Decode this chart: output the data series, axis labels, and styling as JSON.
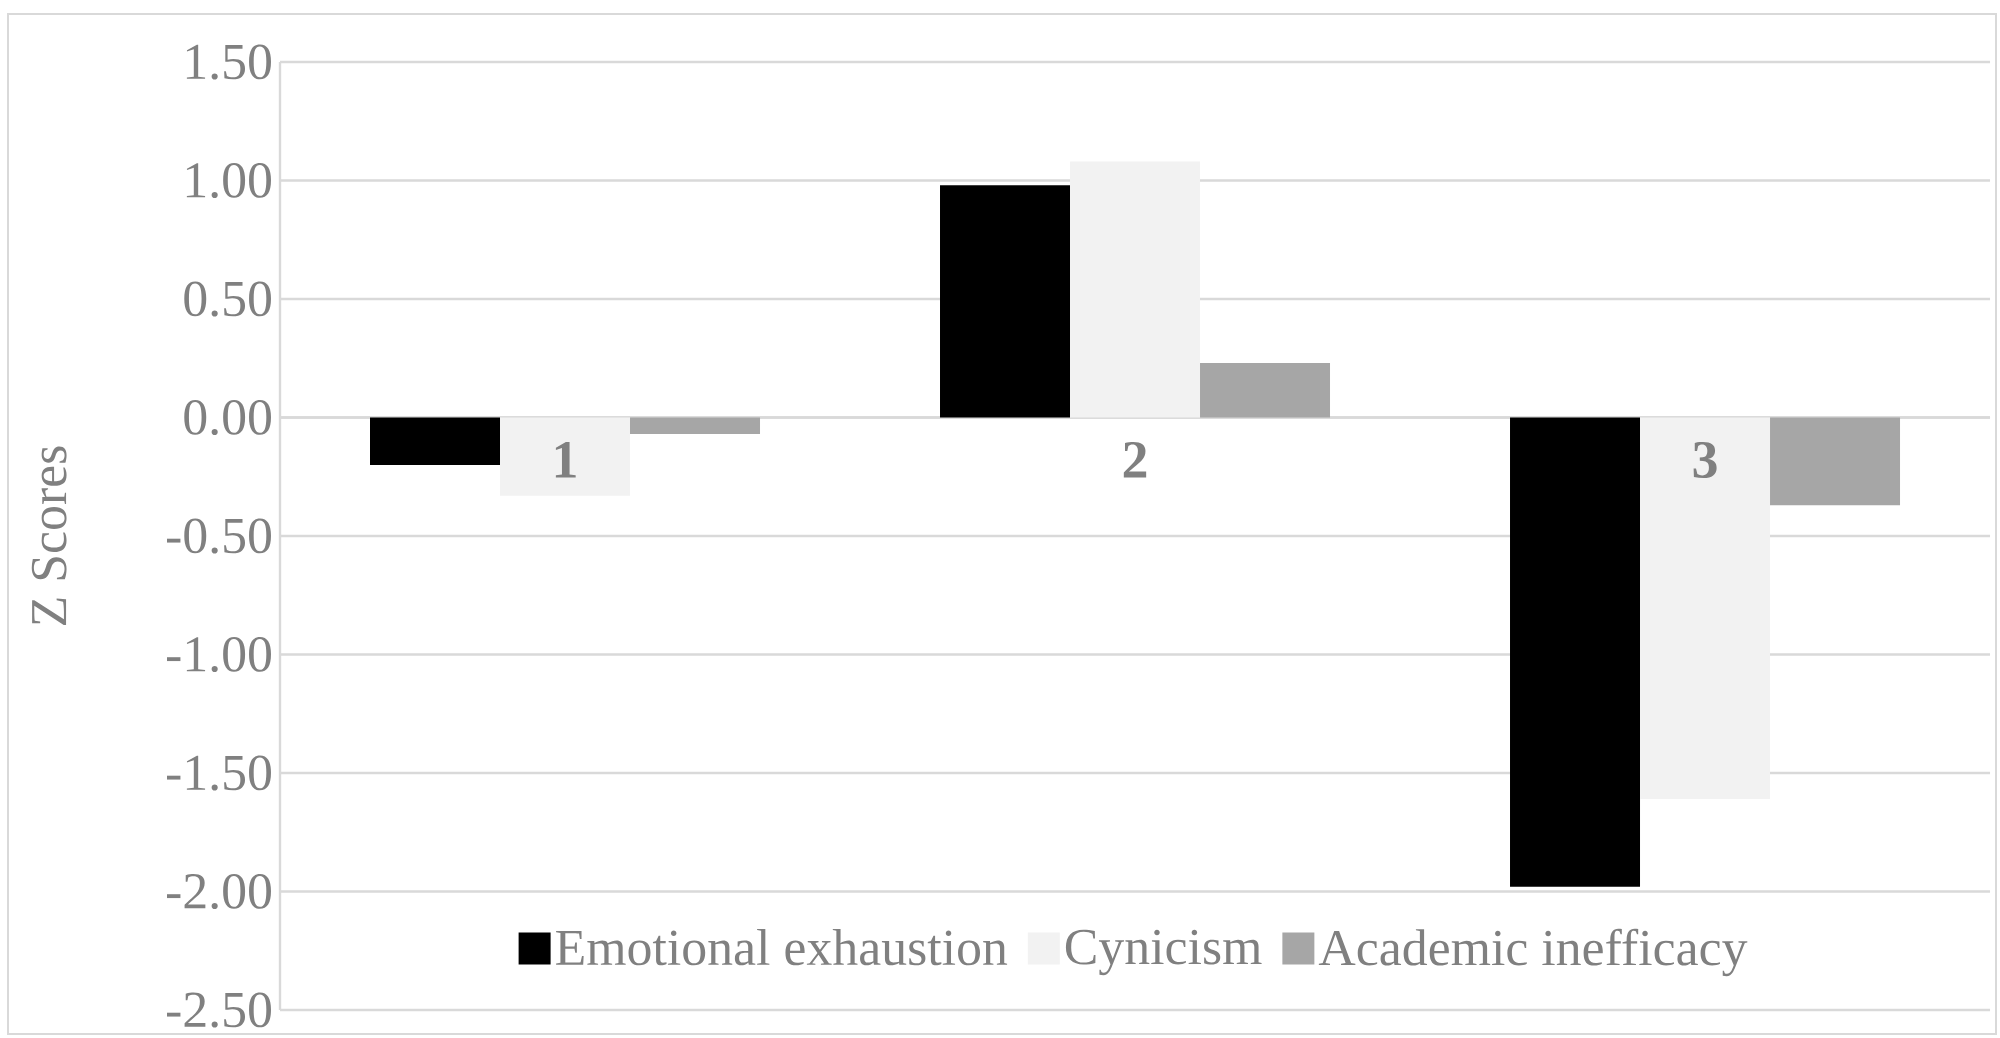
{
  "chart_data": {
    "type": "bar",
    "ylabel": "Z Scores",
    "categories": [
      "1",
      "2",
      "3"
    ],
    "series": [
      {
        "name": "Emotional exhaustion",
        "color": "#000000",
        "values": [
          -0.2,
          0.98,
          -1.98
        ]
      },
      {
        "name": "Cynicism",
        "color": "#f2f2f2",
        "values": [
          -0.33,
          1.08,
          -1.61
        ]
      },
      {
        "name": "Academic inefficacy",
        "color": "#a6a6a6",
        "values": [
          -0.07,
          0.23,
          -0.37
        ]
      }
    ],
    "ylim": [
      -2.5,
      1.5
    ],
    "yticks": [
      {
        "value": -2.5,
        "label": "-2.50"
      },
      {
        "value": -2.0,
        "label": "-2.00"
      },
      {
        "value": -1.5,
        "label": "-1.50"
      },
      {
        "value": -1.0,
        "label": "-1.00"
      },
      {
        "value": -0.5,
        "label": "-0.50"
      },
      {
        "value": 0,
        "label": "0.00"
      },
      {
        "value": 0.5,
        "label": "0.50"
      },
      {
        "value": 1.0,
        "label": "1.00"
      },
      {
        "value": 1.5,
        "label": "1.50"
      }
    ],
    "grid": "y",
    "legend": "bottom"
  }
}
